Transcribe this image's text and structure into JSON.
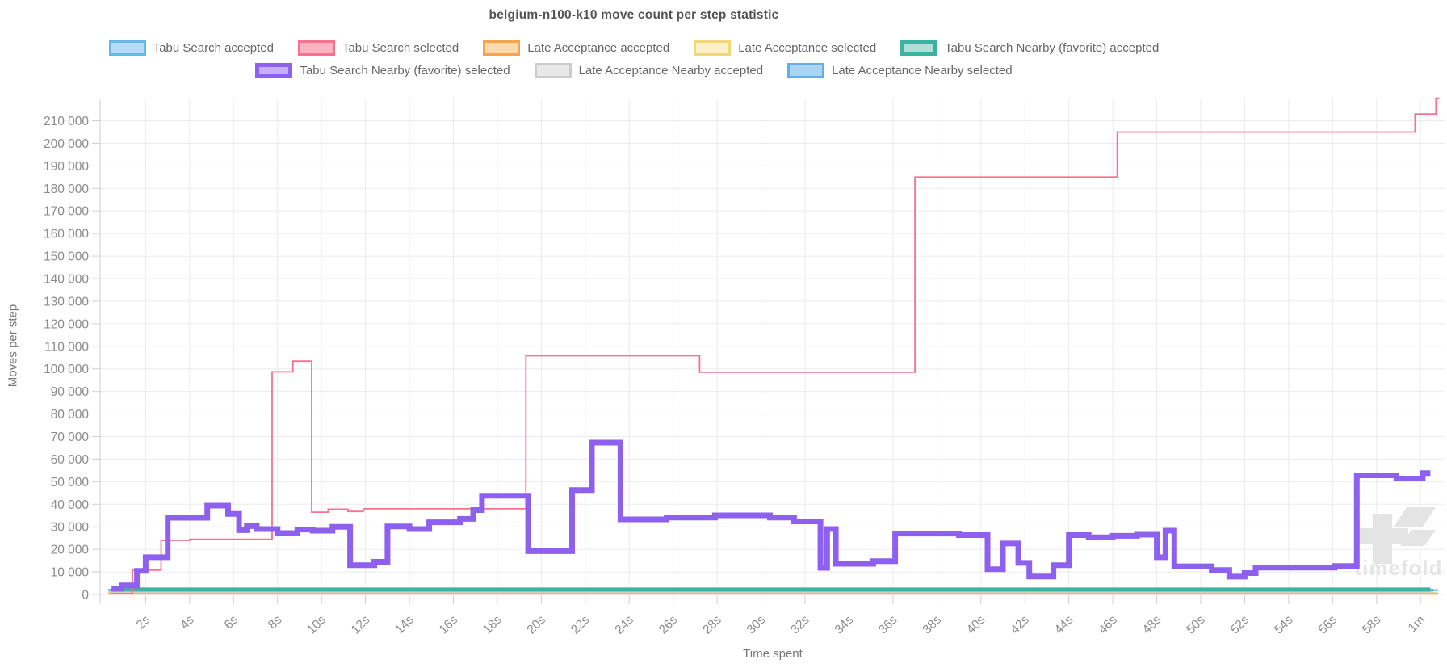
{
  "title": "belgium-n100-k10 move count per step statistic",
  "axes": {
    "y_title": "Moves per step",
    "x_title": "Time spent"
  },
  "watermark": {
    "text": "timefold"
  },
  "legend": {
    "row1": [
      {
        "label": "Tabu Search accepted",
        "border": "#66b8ea",
        "fill": "#b8dcf5",
        "thick": false
      },
      {
        "label": "Tabu Search selected",
        "border": "#f8718e",
        "fill": "#fbb3c4",
        "thick": false
      },
      {
        "label": "Late Acceptance accepted",
        "border": "#f5a44c",
        "fill": "#fbd9ae",
        "thick": false
      },
      {
        "label": "Late Acceptance selected",
        "border": "#f3d879",
        "fill": "#fbf0c8",
        "thick": false
      },
      {
        "label": "Tabu Search Nearby (favorite) accepted",
        "border": "#3ab3a3",
        "fill": "#b0e0d8",
        "thick": true
      }
    ],
    "row2": [
      {
        "label": "Tabu Search Nearby (favorite) selected",
        "border": "#8d60f0",
        "fill": "#c7aef8",
        "thick": true
      },
      {
        "label": "Late Acceptance Nearby accepted",
        "border": "#cccccc",
        "fill": "#e8e8e8",
        "thick": false
      },
      {
        "label": "Late Acceptance Nearby selected",
        "border": "#64aee6",
        "fill": "#a9d5f3",
        "thick": false
      }
    ]
  },
  "chart_data": {
    "type": "line",
    "step": true,
    "title": "belgium-n100-k10 move count per step statistic",
    "xlabel": "Time spent",
    "ylabel": "Moves per step",
    "x_unit": "seconds",
    "xlim_seconds": [
      0,
      60.85
    ],
    "ylim": [
      0,
      220000
    ],
    "grid": true,
    "legend_position": "top",
    "y_ticks": [
      {
        "v": 0,
        "label": "0"
      },
      {
        "v": 10000,
        "label": "10 000"
      },
      {
        "v": 20000,
        "label": "20 000"
      },
      {
        "v": 30000,
        "label": "30 000"
      },
      {
        "v": 40000,
        "label": "40 000"
      },
      {
        "v": 50000,
        "label": "50 000"
      },
      {
        "v": 60000,
        "label": "60 000"
      },
      {
        "v": 70000,
        "label": "70 000"
      },
      {
        "v": 80000,
        "label": "80 000"
      },
      {
        "v": 90000,
        "label": "90 000"
      },
      {
        "v": 100000,
        "label": "100 000"
      },
      {
        "v": 110000,
        "label": "110 000"
      },
      {
        "v": 120000,
        "label": "120 000"
      },
      {
        "v": 130000,
        "label": "130 000"
      },
      {
        "v": 140000,
        "label": "140 000"
      },
      {
        "v": 150000,
        "label": "150 000"
      },
      {
        "v": 160000,
        "label": "160 000"
      },
      {
        "v": 170000,
        "label": "170 000"
      },
      {
        "v": 180000,
        "label": "180 000"
      },
      {
        "v": 190000,
        "label": "190 000"
      },
      {
        "v": 200000,
        "label": "200 000"
      },
      {
        "v": 210000,
        "label": "210 000"
      }
    ],
    "x_ticks": [
      {
        "s": 2,
        "label": "2s"
      },
      {
        "s": 4,
        "label": "4s"
      },
      {
        "s": 6,
        "label": "6s"
      },
      {
        "s": 8,
        "label": "8s"
      },
      {
        "s": 10,
        "label": "10s"
      },
      {
        "s": 12,
        "label": "12s"
      },
      {
        "s": 14,
        "label": "14s"
      },
      {
        "s": 16,
        "label": "16s"
      },
      {
        "s": 18,
        "label": "18s"
      },
      {
        "s": 20,
        "label": "20s"
      },
      {
        "s": 22,
        "label": "22s"
      },
      {
        "s": 24,
        "label": "24s"
      },
      {
        "s": 26,
        "label": "26s"
      },
      {
        "s": 28,
        "label": "28s"
      },
      {
        "s": 30,
        "label": "30s"
      },
      {
        "s": 32,
        "label": "32s"
      },
      {
        "s": 34,
        "label": "34s"
      },
      {
        "s": 36,
        "label": "36s"
      },
      {
        "s": 38,
        "label": "38s"
      },
      {
        "s": 40,
        "label": "40s"
      },
      {
        "s": 42,
        "label": "42s"
      },
      {
        "s": 44,
        "label": "44s"
      },
      {
        "s": 46,
        "label": "46s"
      },
      {
        "s": 48,
        "label": "48s"
      },
      {
        "s": 50,
        "label": "50s"
      },
      {
        "s": 52,
        "label": "52s"
      },
      {
        "s": 54,
        "label": "54s"
      },
      {
        "s": 56,
        "label": "56s"
      },
      {
        "s": 58,
        "label": "58s"
      },
      {
        "s": 60,
        "label": "1m"
      }
    ],
    "series": [
      {
        "name": "late-acceptance-selected",
        "label": "Late Acceptance selected",
        "color": "#f6d96b",
        "width": 2,
        "end": 60.8,
        "points": [
          [
            0.3,
            600
          ]
        ]
      },
      {
        "name": "late-acceptance-accepted",
        "label": "Late Acceptance accepted",
        "color": "#f7a94a",
        "width": 2,
        "end": 60.8,
        "points": [
          [
            0.3,
            250
          ]
        ]
      },
      {
        "name": "late-acceptance-nearby-accepted",
        "label": "Late Acceptance Nearby accepted",
        "color": "#cfcfcf",
        "width": 2.5,
        "end": 60.6,
        "points": [
          [
            0.3,
            1200
          ]
        ]
      },
      {
        "name": "tabu-search-accepted",
        "label": "Tabu Search accepted",
        "color": "#7bc2ec",
        "width": 2.5,
        "end": 60.8,
        "points": [
          [
            0.35,
            1900
          ]
        ]
      },
      {
        "name": "late-acceptance-nearby-selected",
        "label": "Late Acceptance Nearby selected",
        "color": "#64aee6",
        "width": 2.5,
        "end": 60.6,
        "points": [
          [
            0.3,
            2050
          ]
        ]
      },
      {
        "name": "tabu-search-nearby-accepted",
        "label": "Tabu Search Nearby (favorite) accepted",
        "color": "#3ab3a3",
        "width": 5,
        "end": 60.45,
        "points": [
          [
            0.5,
            2200
          ]
        ]
      },
      {
        "name": "tabu-search-selected",
        "label": "Tabu Search selected",
        "color": "#f8718e",
        "width": 1.8,
        "end": 60.85,
        "points": [
          [
            0.4,
            400
          ],
          [
            1.4,
            10800
          ],
          [
            2.7,
            24000
          ],
          [
            4.0,
            24500
          ],
          [
            7.75,
            98700
          ],
          [
            8.7,
            103400
          ],
          [
            9.55,
            36500
          ],
          [
            10.3,
            37800
          ],
          [
            11.2,
            36800
          ],
          [
            11.9,
            38000
          ],
          [
            19.3,
            105800
          ],
          [
            27.2,
            98500
          ],
          [
            37.0,
            185000
          ],
          [
            46.2,
            205000
          ],
          [
            59.75,
            213000
          ],
          [
            60.7,
            220000
          ]
        ]
      },
      {
        "name": "tabu-search-nearby-selected",
        "label": "Tabu Search Nearby (favorite) selected",
        "color": "#8d60f0",
        "width": 7,
        "end": 60.45,
        "points": [
          [
            0.45,
            2500
          ],
          [
            0.9,
            4000
          ],
          [
            1.6,
            10500
          ],
          [
            2.0,
            16500
          ],
          [
            3.0,
            34000
          ],
          [
            4.8,
            39400
          ],
          [
            5.75,
            35700
          ],
          [
            6.25,
            28500
          ],
          [
            6.6,
            30300
          ],
          [
            7.05,
            29000
          ],
          [
            8.0,
            27200
          ],
          [
            8.9,
            28800
          ],
          [
            9.6,
            28300
          ],
          [
            10.5,
            30000
          ],
          [
            11.3,
            13000
          ],
          [
            12.4,
            14500
          ],
          [
            13.0,
            30200
          ],
          [
            14.0,
            29000
          ],
          [
            14.9,
            32000
          ],
          [
            16.3,
            33500
          ],
          [
            16.9,
            37400
          ],
          [
            17.3,
            43800
          ],
          [
            19.4,
            19200
          ],
          [
            21.4,
            46300
          ],
          [
            22.3,
            67300
          ],
          [
            23.6,
            33300
          ],
          [
            25.7,
            34100
          ],
          [
            27.9,
            35100
          ],
          [
            30.4,
            34100
          ],
          [
            31.5,
            32400
          ],
          [
            32.7,
            11800
          ],
          [
            33.0,
            29000
          ],
          [
            33.4,
            13600
          ],
          [
            35.1,
            14800
          ],
          [
            36.1,
            27000
          ],
          [
            39.0,
            26300
          ],
          [
            40.3,
            11200
          ],
          [
            41.0,
            22600
          ],
          [
            41.7,
            14000
          ],
          [
            42.2,
            8000
          ],
          [
            43.3,
            13000
          ],
          [
            44.0,
            26300
          ],
          [
            44.9,
            25300
          ],
          [
            46.0,
            26000
          ],
          [
            47.1,
            26500
          ],
          [
            48.0,
            16500
          ],
          [
            48.4,
            28300
          ],
          [
            48.8,
            12500
          ],
          [
            50.5,
            10800
          ],
          [
            51.3,
            7900
          ],
          [
            52.0,
            9500
          ],
          [
            52.5,
            11900
          ],
          [
            56.1,
            12600
          ],
          [
            57.1,
            52800
          ],
          [
            58.9,
            51400
          ],
          [
            60.1,
            53800
          ]
        ]
      }
    ]
  }
}
